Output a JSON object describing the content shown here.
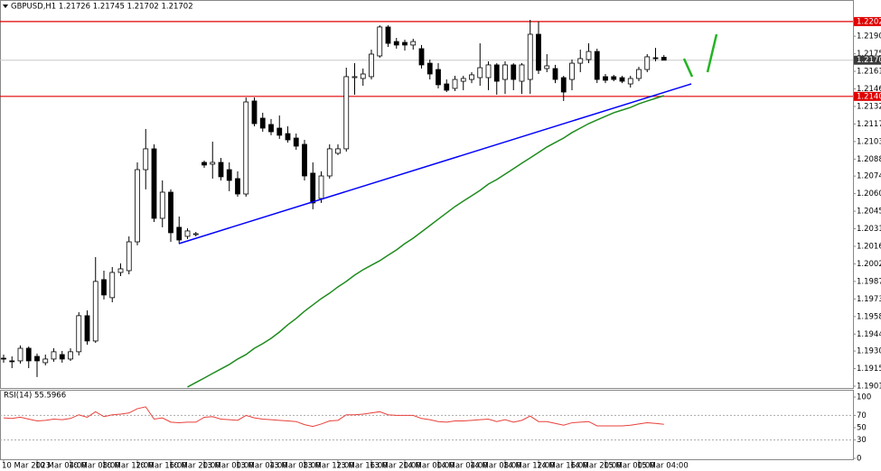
{
  "chart_data": [
    {
      "type": "candlestick",
      "title": "GBPUSD,H1  1.21726 1.21745 1.21702 1.21702",
      "categories": [
        "10 Mar 2023",
        null,
        null,
        null,
        "10 Mar 04:00",
        null,
        null,
        null,
        "10 Mar 08:00",
        null,
        null,
        null,
        "10 Mar 12:00",
        null,
        null,
        null,
        "10 Mar 16:00",
        null,
        null,
        null,
        "10 Mar 20:00",
        null,
        null,
        null,
        "13 Mar 00:00",
        null,
        null,
        null,
        "13 Mar 04:00",
        null,
        null,
        null,
        "13 Mar 08:00",
        null,
        null,
        null,
        "13 Mar 12:00",
        null,
        null,
        null,
        "13 Mar 16:00",
        null,
        null,
        null,
        "13 Mar 20:00",
        null,
        null,
        null,
        "14 Mar 00:00",
        null,
        null,
        null,
        "14 Mar 04:00",
        null,
        null,
        null,
        "14 Mar 08:00",
        null,
        null,
        null,
        "14 Mar 12:00",
        null,
        null,
        null,
        "14 Mar 16:00",
        null,
        null,
        null,
        "14 Mar 20:00",
        null,
        null,
        null,
        "15 Mar 00:00",
        null,
        null,
        null,
        "15 Mar 04:00",
        null,
        null,
        null
      ],
      "open": [
        1.19241,
        1.19219,
        1.19219,
        1.19323,
        1.19256,
        1.19204,
        1.19234,
        1.19271,
        1.19234,
        1.19294,
        1.19592,
        1.19383,
        1.1989,
        1.19741,
        1.19949,
        1.19964,
        1.20202,
        1.20798,
        1.2097,
        1.20396,
        1.20612,
        1.20322,
        1.20247,
        1.20262,
        1.20858,
        1.20843,
        1.20858,
        1.20798,
        1.20724,
        1.20597,
        1.21365,
        1.21223,
        1.21171,
        1.21141,
        1.21096,
        1.21059,
        1.21007,
        1.20769,
        1.2056,
        1.20746,
        1.20933,
        1.2097,
        1.21558,
        1.21551,
        1.21566,
        1.21737,
        1.21976,
        1.21856,
        1.21849,
        1.21827,
        1.21797,
        1.21677,
        1.21625,
        1.21506,
        1.21469,
        1.21528,
        1.21543,
        1.21558,
        1.21558,
        1.21663,
        1.21543,
        1.21663,
        1.21528,
        1.21543,
        1.21916,
        1.21633,
        1.21633,
        1.21558,
        1.21543,
        1.21677,
        1.21707,
        1.21774,
        1.21566,
        1.21566,
        1.21558,
        1.21506,
        1.21551,
        1.21625,
        1.21722,
        1.21726
      ],
      "high": [
        1.19271,
        1.19256,
        1.19346,
        1.19338,
        1.19279,
        1.19271,
        1.19323,
        1.19301,
        1.19323,
        1.19621,
        1.19636,
        1.20076,
        1.19964,
        1.19994,
        1.20024,
        1.20247,
        1.20858,
        1.21134,
        1.21007,
        1.20709,
        1.20635,
        1.20411,
        1.20314,
        1.20284,
        1.20873,
        1.21029,
        1.20895,
        1.20858,
        1.20784,
        1.21394,
        1.21394,
        1.21268,
        1.21216,
        1.21245,
        1.21156,
        1.21096,
        1.21044,
        1.20858,
        1.20784,
        1.21007,
        1.21007,
        1.2164,
        1.21677,
        1.21633,
        1.21789,
        1.2199,
        1.2199,
        1.21886,
        1.21871,
        1.21879,
        1.21827,
        1.21707,
        1.21677,
        1.21543,
        1.21573,
        1.21573,
        1.21603,
        1.21841,
        1.21692,
        1.21677,
        1.21692,
        1.21677,
        1.21677,
        1.22035,
        1.2202,
        1.21752,
        1.21663,
        1.21573,
        1.21707,
        1.21789,
        1.21841,
        1.21797,
        1.21588,
        1.21581,
        1.21573,
        1.21573,
        1.21648,
        1.21752,
        1.21804,
        1.21745
      ],
      "low": [
        1.19204,
        1.19159,
        1.19197,
        1.19159,
        1.19085,
        1.19182,
        1.19212,
        1.19204,
        1.19219,
        1.19264,
        1.19353,
        1.19368,
        1.19726,
        1.19703,
        1.19919,
        1.19934,
        1.20173,
        1.20635,
        1.20366,
        1.20322,
        1.20202,
        1.20187,
        1.20225,
        1.20247,
        1.20813,
        1.20724,
        1.20709,
        1.2062,
        1.20575,
        1.20575,
        1.21156,
        1.21111,
        1.21082,
        1.21052,
        1.21022,
        1.20962,
        1.20709,
        1.20471,
        1.20523,
        1.20724,
        1.20918,
        1.20947,
        1.21417,
        1.21491,
        1.21543,
        1.21722,
        1.21812,
        1.21797,
        1.21782,
        1.21789,
        1.21633,
        1.21543,
        1.21469,
        1.21439,
        1.21447,
        1.21454,
        1.21513,
        1.21491,
        1.21454,
        1.21417,
        1.21424,
        1.21454,
        1.21424,
        1.21424,
        1.21588,
        1.21603,
        1.21513,
        1.21365,
        1.21454,
        1.21603,
        1.21677,
        1.21513,
        1.21513,
        1.21528,
        1.21513,
        1.21476,
        1.21528,
        1.21603,
        1.21692,
        1.21702
      ],
      "close": [
        1.19234,
        1.19212,
        1.19323,
        1.19219,
        1.19219,
        1.19234,
        1.19294,
        1.19234,
        1.19294,
        1.19592,
        1.19383,
        1.19875,
        1.19763,
        1.19949,
        1.19979,
        1.20202,
        1.20798,
        1.2097,
        1.20396,
        1.20612,
        1.20277,
        1.20217,
        1.20292,
        1.20269,
        1.20836,
        1.20858,
        1.20739,
        1.20709,
        1.20597,
        1.21357,
        1.21178,
        1.21141,
        1.21111,
        1.21082,
        1.21044,
        1.20992,
        1.20746,
        1.20523,
        1.20746,
        1.2097,
        1.2097,
        1.21566,
        1.21566,
        1.21588,
        1.21752,
        1.21976,
        1.21841,
        1.21827,
        1.21827,
        1.21856,
        1.21663,
        1.21588,
        1.21499,
        1.21454,
        1.21543,
        1.21551,
        1.21581,
        1.2164,
        1.21663,
        1.21528,
        1.21663,
        1.21543,
        1.21663,
        1.21916,
        1.21618,
        1.21655,
        1.21543,
        1.21439,
        1.21677,
        1.21715,
        1.21774,
        1.21543,
        1.21536,
        1.21543,
        1.21528,
        1.21551,
        1.21625,
        1.2173,
        1.21715,
        1.21702
      ],
      "up_color": "#ffffff",
      "down_color": "#000000",
      "wick_color": "#000000",
      "ma": {
        "color": "#1e8c1e",
        "values": [
          null,
          null,
          null,
          null,
          null,
          null,
          null,
          null,
          null,
          null,
          null,
          null,
          null,
          null,
          null,
          null,
          null,
          null,
          null,
          null,
          null,
          null,
          1.19003,
          1.1904,
          1.19077,
          1.19115,
          1.19152,
          1.19189,
          1.19234,
          1.19271,
          1.19323,
          1.19361,
          1.19405,
          1.19457,
          1.19517,
          1.19569,
          1.19629,
          1.19681,
          1.19733,
          1.19778,
          1.1983,
          1.19875,
          1.19927,
          1.19971,
          1.20009,
          1.20046,
          1.20091,
          1.20135,
          1.20187,
          1.20232,
          1.20284,
          1.20336,
          1.20389,
          1.20441,
          1.20493,
          1.20538,
          1.20582,
          1.20627,
          1.20679,
          1.20716,
          1.20761,
          1.20806,
          1.20851,
          1.20895,
          1.2094,
          1.20985,
          1.21022,
          1.21059,
          1.21104,
          1.21141,
          1.21178,
          1.21208,
          1.21238,
          1.21268,
          1.2129,
          1.21312,
          1.21342,
          1.21365,
          1.21387,
          1.21409
        ]
      },
      "ylim": [
        1.18995,
        1.22199
      ],
      "yticks": [
        {
          "value": 1.219,
          "label": "1.21900"
        },
        1.21755,
        {
          "value": 1.2161,
          "label": "1.21610"
        },
        1.21465,
        {
          "value": 1.2132,
          "label": "1.21320"
        },
        1.21175,
        {
          "value": 1.2103,
          "label": "1.21030"
        },
        1.20885,
        1.20745,
        {
          "value": 1.206,
          "label": "1.20600"
        },
        1.20455,
        {
          "value": 1.2031,
          "label": "1.20310"
        },
        1.20165,
        {
          "value": 1.2002,
          "label": "1.20020"
        },
        1.19875,
        {
          "value": 1.1973,
          "label": "1.19730"
        },
        1.19585,
        {
          "value": 1.1944,
          "label": "1.19440"
        },
        {
          "value": 1.193,
          "label": "1.19300"
        },
        1.19155,
        {
          "value": 1.1901,
          "label": "1.19010"
        }
      ],
      "hlines": [
        {
          "value": 1.22021,
          "color": "#e00000"
        },
        {
          "value": 1.21403,
          "color": "#e00000"
        }
      ],
      "current_price": 1.21702,
      "grid": false
    },
    {
      "type": "line",
      "title": "RSI(14) 55.5966",
      "values": [
        66,
        65,
        67,
        64,
        61,
        62,
        64,
        63,
        65,
        71,
        67,
        76,
        68,
        71,
        72,
        74,
        81,
        84,
        64,
        66,
        59,
        58,
        59,
        59,
        67,
        68,
        64,
        63,
        62,
        70,
        66,
        64,
        63,
        62,
        61,
        60,
        55,
        52,
        56,
        61,
        62,
        71,
        71,
        72,
        74,
        76,
        71,
        70,
        70,
        70,
        65,
        63,
        60,
        59,
        61,
        61,
        62,
        63,
        64,
        60,
        63,
        59,
        62,
        69,
        60,
        60,
        57,
        54,
        58,
        59,
        60,
        53,
        53,
        53,
        53,
        54,
        56,
        58,
        57,
        55.5966
      ],
      "color": "#e8403a",
      "ylim": [
        0,
        100
      ],
      "yticks": [
        100,
        70,
        50,
        30,
        0
      ],
      "levels": [
        70,
        30
      ]
    }
  ]
}
